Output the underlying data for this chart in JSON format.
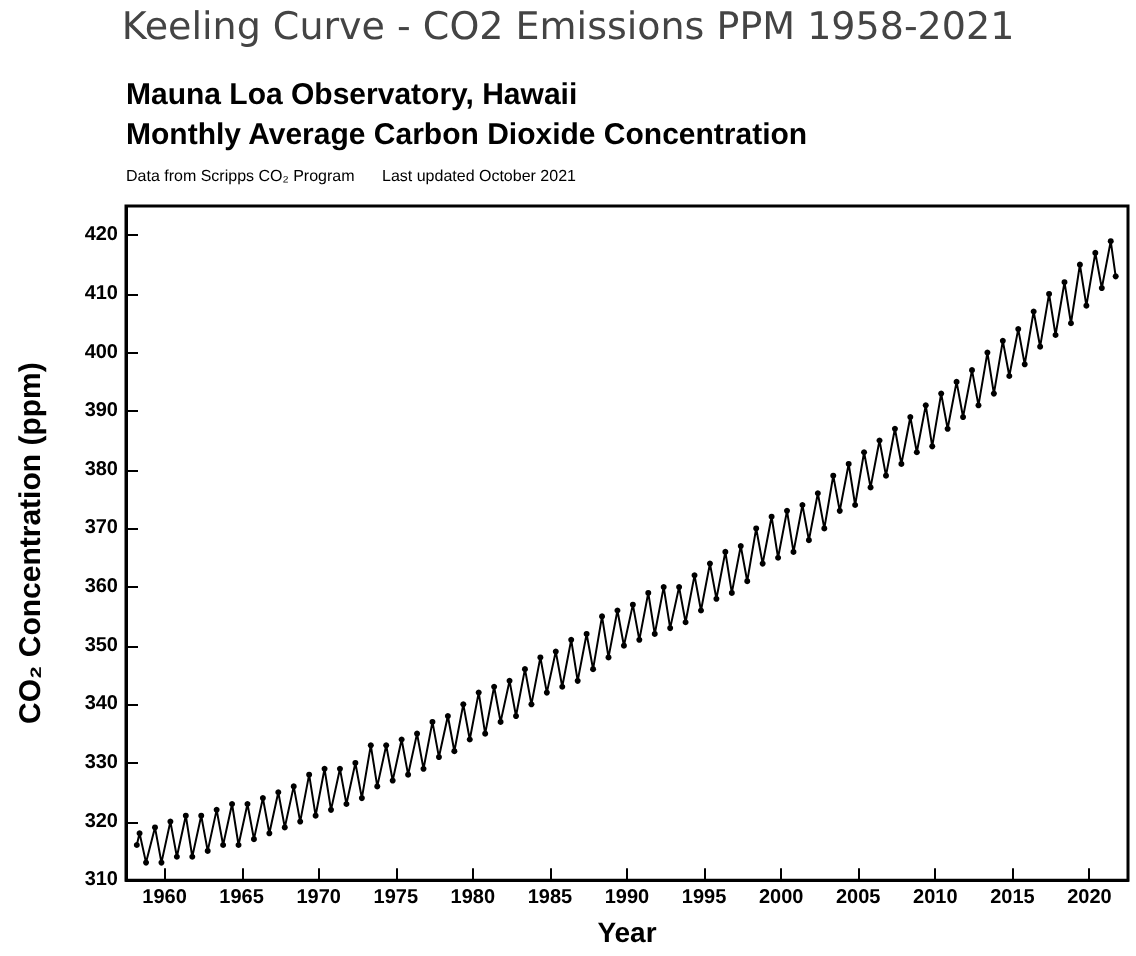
{
  "chart_data": {
    "type": "line",
    "title": "Keeling Curve - CO2 Emissions PPM 1958-2021",
    "subtitle": "Mauna Loa Observatory, Hawaii\nMonthly Average Carbon Dioxide Concentration",
    "annotations": [
      "Data from Scripps CO₂ Program",
      "Last updated October 2021"
    ],
    "xlabel": "Year",
    "ylabel": "CO₂ Concentration (ppm)",
    "x": [
      1958.2,
      1958.38,
      1958.8,
      1959.38,
      1959.8,
      1960.38,
      1960.8,
      1961.38,
      1961.8,
      1962.38,
      1962.8,
      1963.38,
      1963.8,
      1964.38,
      1964.8,
      1965.38,
      1965.8,
      1966.38,
      1966.8,
      1967.38,
      1967.8,
      1968.38,
      1968.8,
      1969.38,
      1969.8,
      1970.38,
      1970.8,
      1971.38,
      1971.8,
      1972.38,
      1972.8,
      1973.38,
      1973.8,
      1974.38,
      1974.8,
      1975.38,
      1975.8,
      1976.38,
      1976.8,
      1977.38,
      1977.8,
      1978.38,
      1978.8,
      1979.38,
      1979.8,
      1980.38,
      1980.8,
      1981.38,
      1981.8,
      1982.38,
      1982.8,
      1983.38,
      1983.8,
      1984.38,
      1984.8,
      1985.38,
      1985.8,
      1986.38,
      1986.8,
      1987.38,
      1987.8,
      1988.38,
      1988.8,
      1989.38,
      1989.8,
      1990.38,
      1990.8,
      1991.38,
      1991.8,
      1992.38,
      1992.8,
      1993.38,
      1993.8,
      1994.38,
      1994.8,
      1995.38,
      1995.8,
      1996.38,
      1996.8,
      1997.38,
      1997.8,
      1998.38,
      1998.8,
      1999.38,
      1999.8,
      2000.38,
      2000.8,
      2001.38,
      2001.8,
      2002.38,
      2002.8,
      2003.38,
      2003.8,
      2004.38,
      2004.8,
      2005.38,
      2005.8,
      2006.38,
      2006.8,
      2007.38,
      2007.8,
      2008.38,
      2008.8,
      2009.38,
      2009.8,
      2010.38,
      2010.8,
      2011.38,
      2011.8,
      2012.38,
      2012.8,
      2013.38,
      2013.8,
      2014.38,
      2014.8,
      2015.38,
      2015.8,
      2016.38,
      2016.8,
      2017.38,
      2017.8,
      2018.38,
      2018.8,
      2019.38,
      2019.8,
      2020.38,
      2020.8,
      2021.38,
      2021.7
    ],
    "series": [
      {
        "color": "#000000",
        "values": [
          316,
          318,
          313,
          319,
          313,
          320,
          314,
          321,
          314,
          321,
          315,
          322,
          316,
          323,
          316,
          323,
          317,
          324,
          318,
          325,
          319,
          326,
          320,
          328,
          321,
          329,
          322,
          329,
          323,
          330,
          324,
          333,
          326,
          333,
          327,
          334,
          328,
          335,
          329,
          337,
          331,
          338,
          332,
          340,
          334,
          342,
          335,
          343,
          337,
          344,
          338,
          346,
          340,
          348,
          342,
          349,
          343,
          351,
          344,
          352,
          346,
          355,
          348,
          356,
          350,
          357,
          351,
          359,
          352,
          360,
          353,
          360,
          354,
          362,
          356,
          364,
          358,
          366,
          359,
          367,
          361,
          370,
          364,
          372,
          365,
          373,
          366,
          374,
          368,
          376,
          370,
          379,
          373,
          381,
          374,
          383,
          377,
          385,
          379,
          387,
          381,
          389,
          383,
          391,
          384,
          393,
          387,
          395,
          389,
          397,
          391,
          400,
          393,
          402,
          396,
          404,
          398,
          407,
          401,
          410,
          403,
          412,
          405,
          415,
          408,
          417,
          411,
          419,
          413
        ]
      }
    ],
    "xlim": [
      1957.5,
      2022.5
    ],
    "xticks": [
      1960,
      1965,
      1970,
      1975,
      1980,
      1985,
      1990,
      1995,
      2000,
      2005,
      2010,
      2015,
      2020
    ],
    "ylim": [
      310,
      425
    ],
    "yticks": [
      310,
      320,
      330,
      340,
      350,
      360,
      370,
      380,
      390,
      400,
      410,
      420
    ],
    "grid": false,
    "marker": "circle",
    "line_style": "solid"
  }
}
